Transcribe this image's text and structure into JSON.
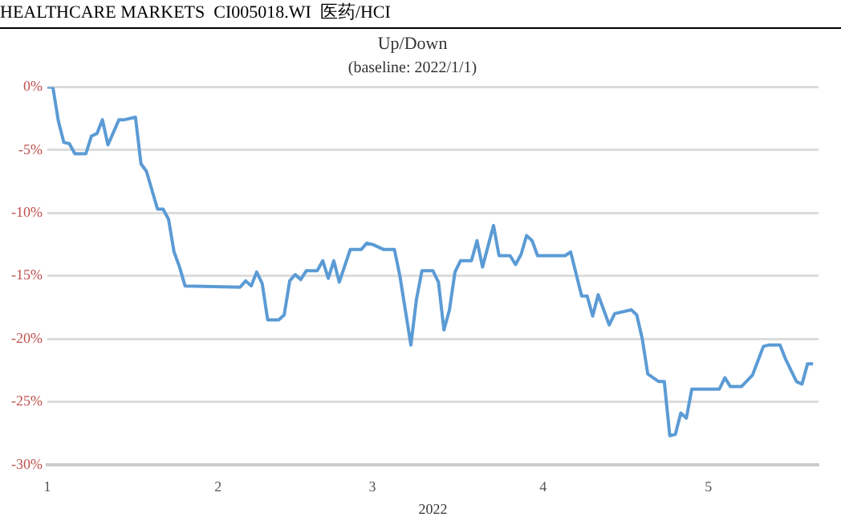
{
  "chart_data": {
    "type": "line",
    "title": "Up/Down",
    "subtitle": "(baseline: 2022/1/1)",
    "xlabel": "2022",
    "annotations": [
      "HEALTHCARE MARKETS  CI005018.WI  医药/HCI"
    ],
    "x": [
      "2022-01-01",
      "2022-01-02",
      "2022-01-03",
      "2022-01-04",
      "2022-01-05",
      "2022-01-06",
      "2022-01-08",
      "2022-01-09",
      "2022-01-10",
      "2022-01-11",
      "2022-01-12",
      "2022-01-14",
      "2022-01-15",
      "2022-01-17",
      "2022-01-18",
      "2022-01-19",
      "2022-01-21",
      "2022-01-22",
      "2022-01-23",
      "2022-01-24",
      "2022-01-25",
      "2022-01-26",
      "2022-02-05",
      "2022-02-06",
      "2022-02-07",
      "2022-02-08",
      "2022-02-09",
      "2022-02-10",
      "2022-02-12",
      "2022-02-13",
      "2022-02-14",
      "2022-02-15",
      "2022-02-16",
      "2022-02-17",
      "2022-02-19",
      "2022-02-20",
      "2022-02-21",
      "2022-02-22",
      "2022-02-23",
      "2022-02-25",
      "2022-02-27",
      "2022-02-28",
      "2022-03-01",
      "2022-03-03",
      "2022-03-05",
      "2022-03-06",
      "2022-03-08",
      "2022-03-09",
      "2022-03-10",
      "2022-03-12",
      "2022-03-13",
      "2022-03-14",
      "2022-03-15",
      "2022-03-16",
      "2022-03-17",
      "2022-03-19",
      "2022-03-20",
      "2022-03-21",
      "2022-03-23",
      "2022-03-24",
      "2022-03-26",
      "2022-03-27",
      "2022-03-28",
      "2022-03-29",
      "2022-03-30",
      "2022-03-31",
      "2022-04-05",
      "2022-04-06",
      "2022-04-08",
      "2022-04-09",
      "2022-04-10",
      "2022-04-11",
      "2022-04-13",
      "2022-04-14",
      "2022-04-17",
      "2022-04-18",
      "2022-04-19",
      "2022-04-20",
      "2022-04-22",
      "2022-04-23",
      "2022-04-24",
      "2022-04-25",
      "2022-04-26",
      "2022-04-27",
      "2022-04-28",
      "2022-05-03",
      "2022-05-04",
      "2022-05-05",
      "2022-05-07",
      "2022-05-09",
      "2022-05-11",
      "2022-05-12",
      "2022-05-14",
      "2022-05-15",
      "2022-05-17",
      "2022-05-18",
      "2022-05-19",
      "2022-05-20"
    ],
    "series": [
      {
        "color": "#5b9bd5",
        "values": [
          0,
          0,
          -2.7,
          -4.4,
          -4.5,
          -5.3,
          -5.3,
          -3.9,
          -3.7,
          -2.6,
          -4.6,
          -2.6,
          -2.6,
          -2.4,
          -6.1,
          -6.7,
          -9.7,
          -9.7,
          -10.5,
          -13.1,
          -14.3,
          -15.8,
          -15.9,
          -15.4,
          -15.8,
          -14.7,
          -15.6,
          -18.5,
          -18.5,
          -18.1,
          -15.4,
          -14.9,
          -15.3,
          -14.6,
          -14.6,
          -13.8,
          -15.2,
          -13.8,
          -15.5,
          -12.9,
          -12.9,
          -12.4,
          -12.5,
          -12.9,
          -12.9,
          -15.0,
          -20.5,
          -16.9,
          -14.6,
          -14.6,
          -15.5,
          -19.3,
          -17.7,
          -14.7,
          -13.8,
          -13.8,
          -12.2,
          -14.3,
          -11.0,
          -13.4,
          -13.4,
          -14.1,
          -13.3,
          -11.8,
          -12.2,
          -13.4,
          -13.4,
          -13.1,
          -16.6,
          -16.6,
          -18.2,
          -16.5,
          -18.9,
          -18.0,
          -17.7,
          -18.1,
          -20.0,
          -22.8,
          -23.4,
          -23.4,
          -27.7,
          -27.6,
          -25.9,
          -26.3,
          -24.0,
          -24.0,
          -23.1,
          -23.8,
          -23.8,
          -22.9,
          -20.6,
          -20.5,
          -20.5,
          -21.6,
          -23.4,
          -23.6,
          -22.0,
          -22.0
        ]
      }
    ],
    "xlim": [
      "2022-01-01",
      "2022-05-21"
    ],
    "xticks": [
      {
        "value": "2022-01-01",
        "label": "1"
      },
      {
        "value": "2022-02-01",
        "label": "2"
      },
      {
        "value": "2022-03-01",
        "label": "3"
      },
      {
        "value": "2022-04-01",
        "label": "4"
      },
      {
        "value": "2022-05-01",
        "label": "5"
      }
    ],
    "ylim": [
      -30,
      0
    ],
    "yticks": [
      {
        "value": 0,
        "label": "0%"
      },
      {
        "value": -5,
        "label": "-5%"
      },
      {
        "value": -10,
        "label": "-10%"
      },
      {
        "value": -15,
        "label": "-15%"
      },
      {
        "value": -20,
        "label": "-20%"
      },
      {
        "value": -25,
        "label": "-25%"
      },
      {
        "value": -30,
        "label": "-30%"
      }
    ],
    "grid": "y",
    "legend": false,
    "marker": "none",
    "line_style": "solid"
  }
}
